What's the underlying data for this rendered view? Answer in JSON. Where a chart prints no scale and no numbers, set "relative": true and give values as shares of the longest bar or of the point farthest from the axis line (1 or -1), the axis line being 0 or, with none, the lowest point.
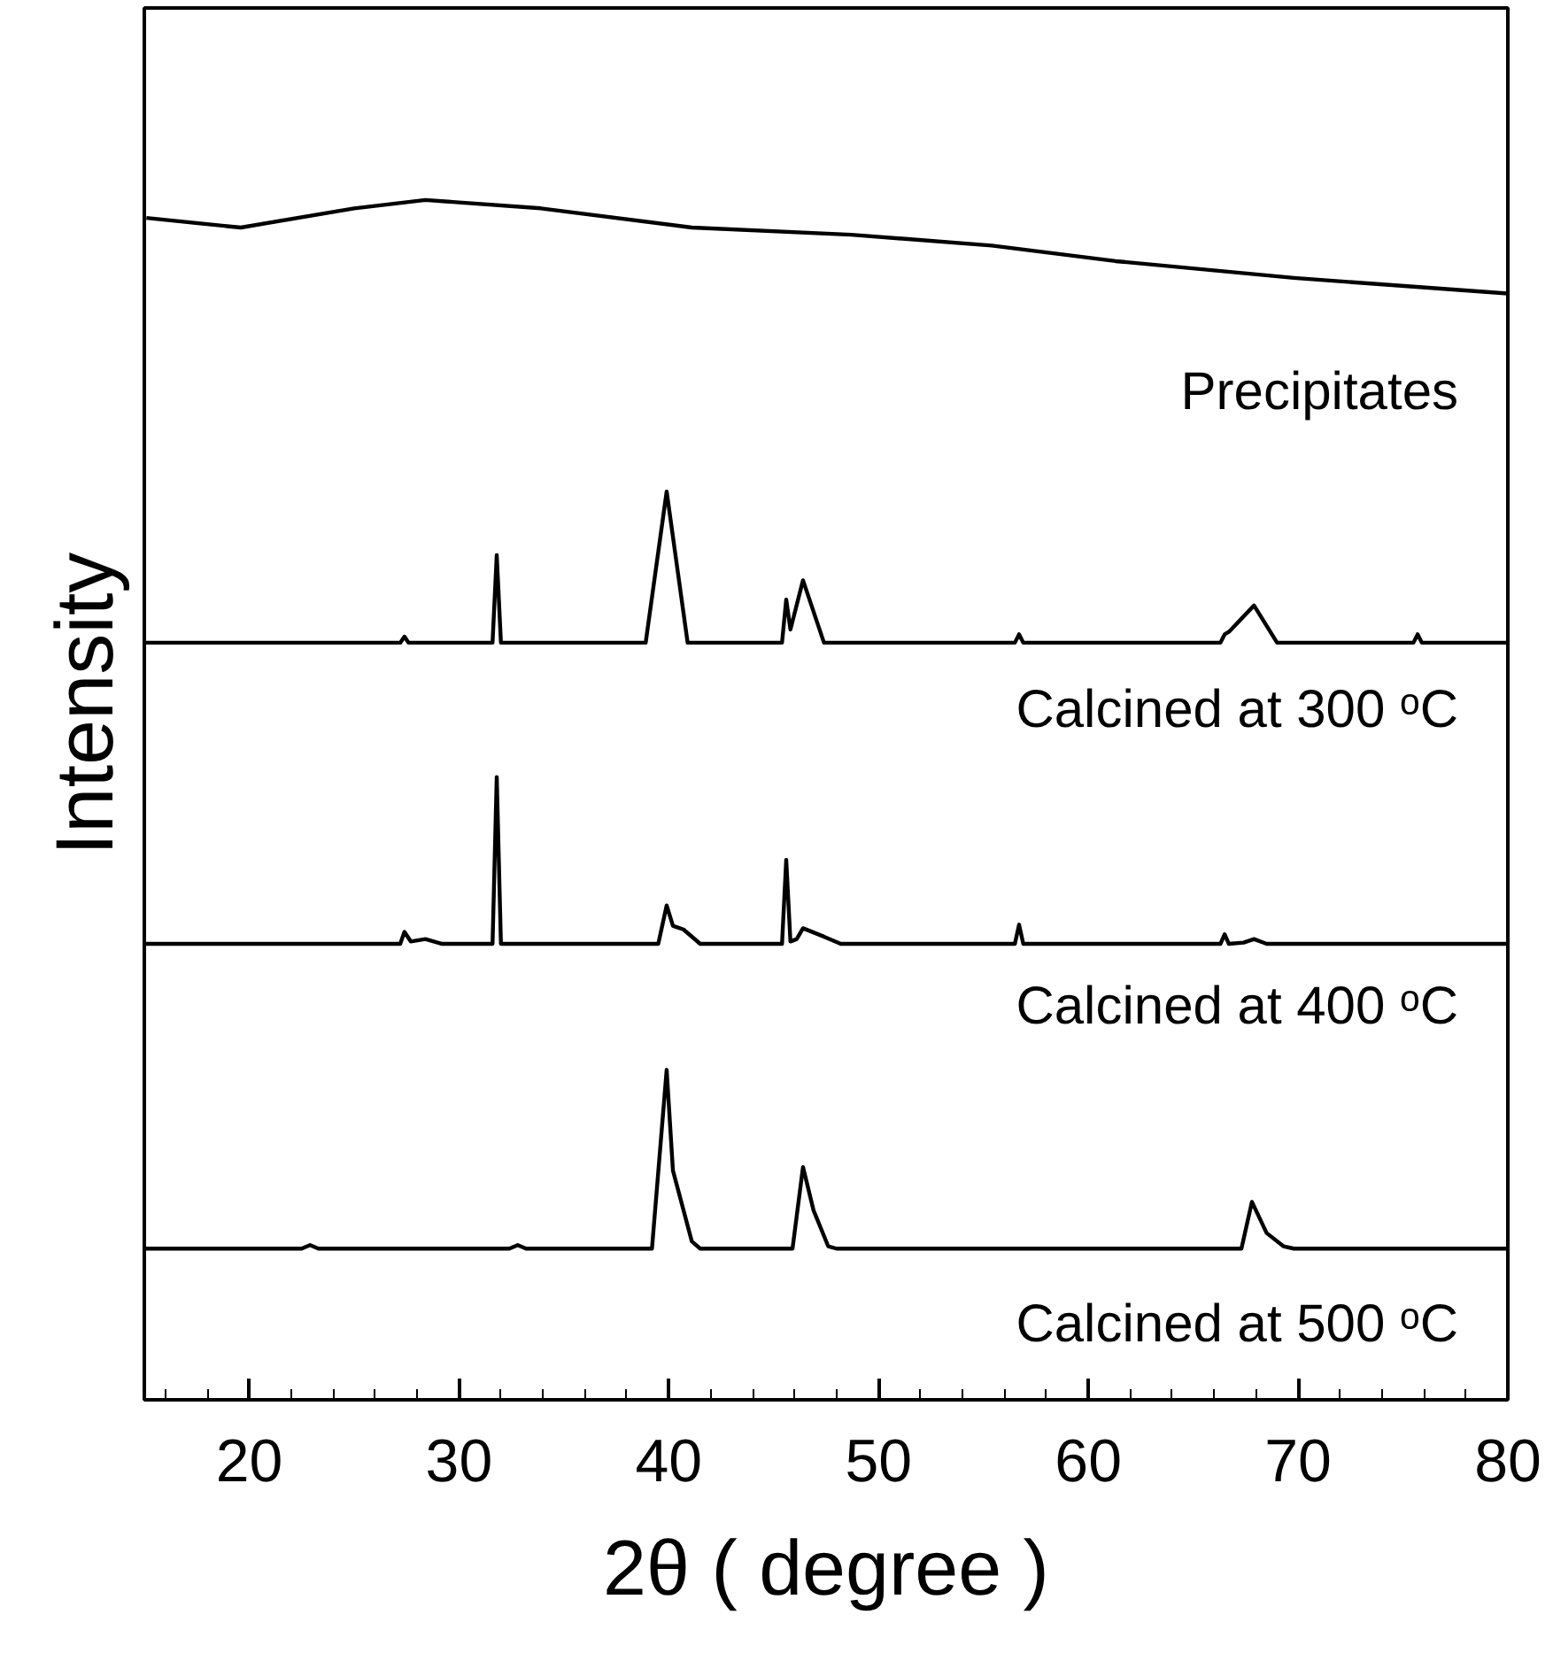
{
  "chart_data": {
    "type": "line",
    "relative": true,
    "xlabel": "2θ ( degree )",
    "ylabel": "Intensity",
    "xlim": [
      15,
      80
    ],
    "xticks": [
      {
        "value": 16,
        "label": null
      },
      {
        "value": 18,
        "label": null
      },
      20,
      {
        "value": 22,
        "label": null
      },
      {
        "value": 24,
        "label": null
      },
      {
        "value": 26,
        "label": null
      },
      {
        "value": 28,
        "label": null
      },
      30,
      {
        "value": 32,
        "label": null
      },
      {
        "value": 34,
        "label": null
      },
      {
        "value": 36,
        "label": null
      },
      {
        "value": 38,
        "label": null
      },
      40,
      {
        "value": 42,
        "label": null
      },
      {
        "value": 44,
        "label": null
      },
      {
        "value": 46,
        "label": null
      },
      {
        "value": 48,
        "label": null
      },
      50,
      {
        "value": 52,
        "label": null
      },
      {
        "value": 54,
        "label": null
      },
      {
        "value": 56,
        "label": null
      },
      {
        "value": 58,
        "label": null
      },
      60,
      {
        "value": 62,
        "label": null
      },
      {
        "value": 64,
        "label": null
      },
      {
        "value": 66,
        "label": null
      },
      {
        "value": 68,
        "label": null
      },
      70,
      {
        "value": 72,
        "label": null
      },
      {
        "value": 74,
        "label": null
      },
      {
        "value": 76,
        "label": null
      },
      {
        "value": 78,
        "label": null
      },
      80
    ],
    "grid": false,
    "line_style": "solid",
    "series": [
      {
        "name": "Precipitates",
        "color": "#000000",
        "x": [
          15.1,
          19.6,
          25.0,
          28.4,
          33.9,
          41.1,
          48.7,
          55.4,
          61.3,
          69.8,
          80
        ],
        "values": [
          0.985,
          0.977,
          0.993,
          1.0,
          0.993,
          0.977,
          0.971,
          0.962,
          0.949,
          0.935,
          0.922
        ]
      },
      {
        "name": "Calcined at 300 ᵒC",
        "color": "#000000",
        "x": [
          15,
          27.2,
          27.4,
          27.6,
          31.6,
          31.8,
          32.0,
          38.9,
          39.9,
          40.9,
          45.4,
          45.6,
          45.8,
          46.4,
          47.4,
          56.5,
          56.7,
          56.9,
          66.3,
          66.5,
          66.7,
          67.9,
          69.0,
          75.5,
          75.7,
          75.9,
          80
        ],
        "values": [
          0.631,
          0.631,
          0.636,
          0.631,
          0.631,
          0.704,
          0.631,
          0.631,
          0.757,
          0.631,
          0.631,
          0.667,
          0.642,
          0.683,
          0.631,
          0.631,
          0.638,
          0.631,
          0.631,
          0.638,
          0.64,
          0.662,
          0.631,
          0.631,
          0.638,
          0.631,
          0.631
        ]
      },
      {
        "name": "Calcined at 400 ᵒC",
        "color": "#000000",
        "x": [
          15,
          27.2,
          27.4,
          27.7,
          28.4,
          29.2,
          31.6,
          31.8,
          32.0,
          39.5,
          39.9,
          40.2,
          40.7,
          41.5,
          45.4,
          45.6,
          45.8,
          46.1,
          46.4,
          47.4,
          48.2,
          56.5,
          56.7,
          56.9,
          66.3,
          66.5,
          66.7,
          67.4,
          67.9,
          68.5,
          80
        ],
        "values": [
          0.38,
          0.38,
          0.39,
          0.382,
          0.384,
          0.38,
          0.38,
          0.519,
          0.38,
          0.38,
          0.412,
          0.395,
          0.392,
          0.38,
          0.38,
          0.45,
          0.382,
          0.384,
          0.393,
          0.386,
          0.38,
          0.38,
          0.396,
          0.38,
          0.38,
          0.388,
          0.38,
          0.381,
          0.384,
          0.38,
          0.38
        ]
      },
      {
        "name": "Calcined at 500 ᵒC",
        "color": "#000000",
        "x": [
          15,
          22.5,
          22.9,
          23.3,
          32.4,
          32.8,
          33.2,
          39.2,
          39.9,
          40.2,
          41.1,
          41.5,
          45.9,
          46.4,
          46.9,
          47.6,
          48.0,
          67.3,
          67.8,
          68.5,
          69.3,
          69.8,
          80
        ],
        "values": [
          0.126,
          0.126,
          0.129,
          0.126,
          0.126,
          0.129,
          0.126,
          0.126,
          0.275,
          0.191,
          0.132,
          0.126,
          0.126,
          0.194,
          0.158,
          0.128,
          0.126,
          0.126,
          0.165,
          0.139,
          0.128,
          0.126,
          0.126
        ]
      }
    ]
  }
}
